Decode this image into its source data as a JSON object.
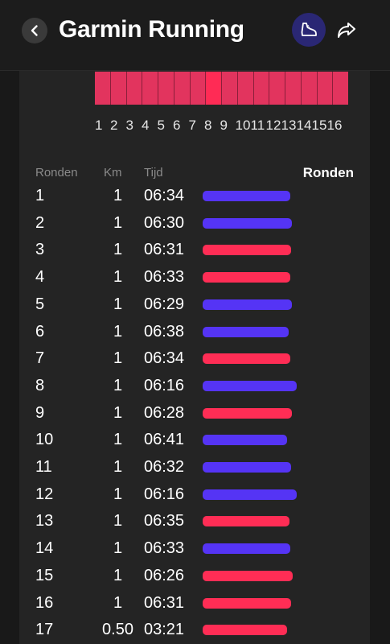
{
  "header": {
    "title": "Garmin Running"
  },
  "zones": {
    "labels": [
      "1",
      "2",
      "3",
      "4",
      "5",
      "6",
      "7",
      "8",
      "9",
      "10",
      "11",
      "12",
      "13",
      "14",
      "15",
      "16"
    ],
    "highlighted": 8
  },
  "table": {
    "col_lap": "Ronden",
    "col_km": "Km",
    "col_time": "Tijd",
    "active_view": "Ronden",
    "rows": [
      {
        "lap": "1",
        "km": "1",
        "time": "06:34",
        "pace_sec": 394,
        "bar_color": "#5534f5"
      },
      {
        "lap": "2",
        "km": "1",
        "time": "06:30",
        "pace_sec": 390,
        "bar_color": "#5534f5"
      },
      {
        "lap": "3",
        "km": "1",
        "time": "06:31",
        "pace_sec": 391,
        "bar_color": "#ff2d55"
      },
      {
        "lap": "4",
        "km": "1",
        "time": "06:33",
        "pace_sec": 393,
        "bar_color": "#ff2d55"
      },
      {
        "lap": "5",
        "km": "1",
        "time": "06:29",
        "pace_sec": 389,
        "bar_color": "#5534f5"
      },
      {
        "lap": "6",
        "km": "1",
        "time": "06:38",
        "pace_sec": 398,
        "bar_color": "#5534f5"
      },
      {
        "lap": "7",
        "km": "1",
        "time": "06:34",
        "pace_sec": 394,
        "bar_color": "#ff2d55"
      },
      {
        "lap": "8",
        "km": "1",
        "time": "06:16",
        "pace_sec": 376,
        "bar_color": "#5534f5"
      },
      {
        "lap": "9",
        "km": "1",
        "time": "06:28",
        "pace_sec": 388,
        "bar_color": "#ff2d55"
      },
      {
        "lap": "10",
        "km": "1",
        "time": "06:41",
        "pace_sec": 401,
        "bar_color": "#5534f5"
      },
      {
        "lap": "11",
        "km": "1",
        "time": "06:32",
        "pace_sec": 392,
        "bar_color": "#5534f5"
      },
      {
        "lap": "12",
        "km": "1",
        "time": "06:16",
        "pace_sec": 376,
        "bar_color": "#5534f5"
      },
      {
        "lap": "13",
        "km": "1",
        "time": "06:35",
        "pace_sec": 395,
        "bar_color": "#ff2d55"
      },
      {
        "lap": "14",
        "km": "1",
        "time": "06:33",
        "pace_sec": 393,
        "bar_color": "#5534f5"
      },
      {
        "lap": "15",
        "km": "1",
        "time": "06:26",
        "pace_sec": 386,
        "bar_color": "#ff2d55"
      },
      {
        "lap": "16",
        "km": "1",
        "time": "06:31",
        "pace_sec": 391,
        "bar_color": "#ff2d55"
      },
      {
        "lap": "17",
        "km": "0.50",
        "time": "03:21",
        "pace_sec": 402,
        "bar_color": "#ff2d55"
      }
    ]
  }
}
